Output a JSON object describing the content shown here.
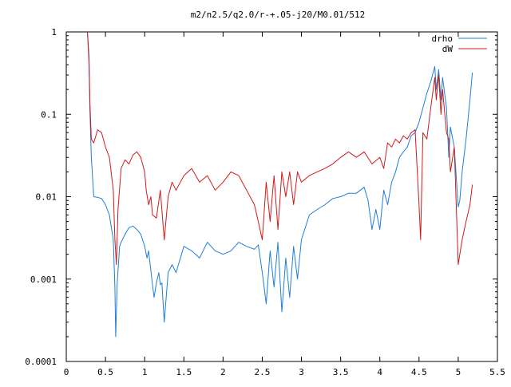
{
  "chart_data": {
    "type": "line",
    "title": "m2/n2.5/q2.0/r-+.05-j20/M0.01/512",
    "xlabel": "",
    "ylabel": "",
    "xlim": [
      0,
      5.5
    ],
    "ylim": [
      0.0001,
      1
    ],
    "yscale": "log",
    "grid": false,
    "legend_position": "top-right",
    "x_tick_labels": [
      "0",
      "0.5",
      "1",
      "1.5",
      "2",
      "2.5",
      "3",
      "3.5",
      "4",
      "4.5",
      "5",
      "5.5"
    ],
    "x_tick_values": [
      0,
      0.5,
      1,
      1.5,
      2,
      2.5,
      3,
      3.5,
      4,
      4.5,
      5,
      5.5
    ],
    "y_tick_labels": [
      "0.0001",
      "0.001",
      "0.01",
      "0.1",
      "1"
    ],
    "y_tick_values": [
      0.0001,
      0.001,
      0.01,
      0.1,
      1
    ],
    "series": [
      {
        "name": "drho",
        "color": "#1f7fd8",
        "x": [
          0.27,
          0.29,
          0.3,
          0.32,
          0.35,
          0.4,
          0.45,
          0.5,
          0.55,
          0.6,
          0.62,
          0.63,
          0.65,
          0.68,
          0.7,
          0.75,
          0.8,
          0.85,
          0.9,
          0.95,
          1.0,
          1.03,
          1.05,
          1.1,
          1.12,
          1.15,
          1.18,
          1.2,
          1.22,
          1.25,
          1.3,
          1.35,
          1.4,
          1.5,
          1.6,
          1.7,
          1.8,
          1.9,
          2.0,
          2.1,
          2.2,
          2.3,
          2.4,
          2.45,
          2.5,
          2.55,
          2.6,
          2.65,
          2.7,
          2.75,
          2.8,
          2.85,
          2.9,
          2.95,
          3.0,
          3.1,
          3.2,
          3.3,
          3.4,
          3.5,
          3.6,
          3.7,
          3.75,
          3.8,
          3.85,
          3.9,
          3.95,
          4.0,
          4.05,
          4.1,
          4.15,
          4.2,
          4.25,
          4.3,
          4.35,
          4.4,
          4.45,
          4.5,
          4.55,
          4.6,
          4.65,
          4.7,
          4.72,
          4.75,
          4.78,
          4.8,
          4.85,
          4.88,
          4.9,
          4.95,
          5.0,
          5.02,
          5.05,
          5.1,
          5.15,
          5.18
        ],
        "y": [
          1.0,
          0.4,
          0.12,
          0.03,
          0.01,
          0.0098,
          0.0095,
          0.008,
          0.006,
          0.003,
          0.0008,
          0.0002,
          0.0009,
          0.0025,
          0.0028,
          0.0035,
          0.0042,
          0.0044,
          0.004,
          0.0035,
          0.0025,
          0.0018,
          0.0022,
          0.00085,
          0.0006,
          0.0009,
          0.0012,
          0.00085,
          0.0009,
          0.0003,
          0.0012,
          0.0015,
          0.0012,
          0.0025,
          0.0022,
          0.0018,
          0.0028,
          0.0022,
          0.002,
          0.0022,
          0.0028,
          0.0025,
          0.0023,
          0.0026,
          0.0012,
          0.0005,
          0.0022,
          0.0008,
          0.0028,
          0.0004,
          0.0018,
          0.0006,
          0.0025,
          0.001,
          0.003,
          0.006,
          0.007,
          0.008,
          0.0095,
          0.01,
          0.011,
          0.011,
          0.012,
          0.013,
          0.009,
          0.004,
          0.007,
          0.004,
          0.012,
          0.008,
          0.015,
          0.02,
          0.03,
          0.035,
          0.04,
          0.055,
          0.06,
          0.08,
          0.12,
          0.18,
          0.25,
          0.38,
          0.2,
          0.35,
          0.15,
          0.28,
          0.12,
          0.03,
          0.07,
          0.04,
          0.0075,
          0.009,
          0.02,
          0.05,
          0.15,
          0.32
        ]
      },
      {
        "name": "dW",
        "color": "#d41818",
        "x": [
          0.27,
          0.29,
          0.3,
          0.32,
          0.35,
          0.4,
          0.45,
          0.5,
          0.55,
          0.6,
          0.62,
          0.64,
          0.66,
          0.7,
          0.75,
          0.8,
          0.85,
          0.9,
          0.95,
          1.0,
          1.02,
          1.05,
          1.08,
          1.1,
          1.15,
          1.2,
          1.25,
          1.3,
          1.35,
          1.4,
          1.5,
          1.6,
          1.7,
          1.8,
          1.9,
          2.0,
          2.1,
          2.2,
          2.3,
          2.4,
          2.45,
          2.5,
          2.55,
          2.6,
          2.65,
          2.7,
          2.75,
          2.8,
          2.85,
          2.9,
          2.95,
          3.0,
          3.1,
          3.2,
          3.3,
          3.4,
          3.5,
          3.6,
          3.7,
          3.8,
          3.9,
          4.0,
          4.05,
          4.1,
          4.15,
          4.2,
          4.25,
          4.3,
          4.35,
          4.4,
          4.45,
          4.5,
          4.52,
          4.55,
          4.6,
          4.65,
          4.7,
          4.72,
          4.75,
          4.78,
          4.8,
          4.85,
          4.88,
          4.9,
          4.95,
          5.0,
          5.02,
          5.05,
          5.1,
          5.15,
          5.18
        ],
        "y": [
          1.0,
          0.5,
          0.15,
          0.05,
          0.045,
          0.065,
          0.06,
          0.04,
          0.03,
          0.012,
          0.003,
          0.0015,
          0.007,
          0.022,
          0.028,
          0.025,
          0.032,
          0.035,
          0.03,
          0.02,
          0.012,
          0.008,
          0.01,
          0.006,
          0.0055,
          0.012,
          0.003,
          0.01,
          0.015,
          0.012,
          0.018,
          0.022,
          0.015,
          0.018,
          0.012,
          0.015,
          0.02,
          0.018,
          0.012,
          0.008,
          0.005,
          0.003,
          0.015,
          0.005,
          0.018,
          0.004,
          0.02,
          0.01,
          0.02,
          0.008,
          0.02,
          0.015,
          0.018,
          0.02,
          0.022,
          0.025,
          0.03,
          0.035,
          0.03,
          0.035,
          0.025,
          0.03,
          0.022,
          0.045,
          0.04,
          0.05,
          0.045,
          0.055,
          0.05,
          0.06,
          0.065,
          0.008,
          0.003,
          0.06,
          0.05,
          0.12,
          0.28,
          0.15,
          0.3,
          0.1,
          0.2,
          0.06,
          0.05,
          0.02,
          0.04,
          0.0015,
          0.002,
          0.003,
          0.005,
          0.008,
          0.014
        ]
      }
    ]
  }
}
